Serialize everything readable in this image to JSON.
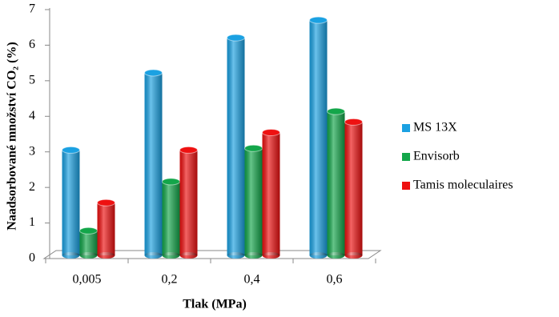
{
  "chart_data": {
    "type": "bar3d",
    "ylabel": "Naadsorbované množství CO₂ (%)",
    "xlabel": "Tlak (MPa)",
    "categories": [
      "0,005",
      "0,2",
      "0,4",
      "0,6"
    ],
    "series": [
      {
        "name": "MS 13X",
        "color": "#1ba1e2",
        "values": [
          3.0,
          5.2,
          6.2,
          6.7
        ]
      },
      {
        "name": "Envisorb",
        "color": "#13a64a",
        "values": [
          0.7,
          2.1,
          3.05,
          4.1
        ]
      },
      {
        "name": "Tamis moleculaires",
        "color": "#ee1111",
        "values": [
          1.5,
          3.0,
          3.5,
          3.8
        ]
      }
    ],
    "ylim": [
      0,
      7
    ],
    "yticks": [
      0,
      1,
      2,
      3,
      4,
      5,
      6,
      7
    ],
    "legend": "right"
  }
}
